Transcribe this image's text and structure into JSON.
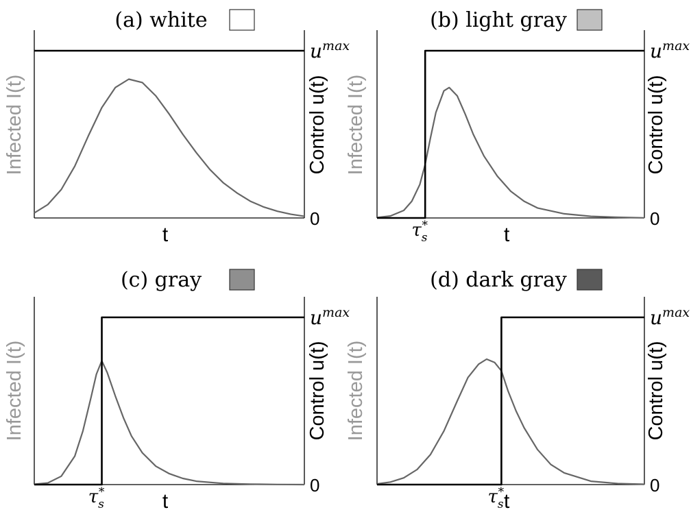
{
  "colors": {
    "infected_curve": "#666666",
    "control_curve": "#000000",
    "axis": "#000000",
    "left_label": "#999999"
  },
  "chart_data": [
    {
      "type": "line",
      "title": "(a) white",
      "swatch_color": "#ffffff",
      "xlabel": "t",
      "ylabel_left": "Infected I(t)",
      "ylabel_right": "Control u(t)",
      "right_ticks": {
        "top": "u",
        "top_sup": "max",
        "bottom": "0"
      },
      "tau_label": null,
      "switch_time": null,
      "series": [
        {
          "name": "",
          "kind": "infected",
          "x": [
            0,
            0.05,
            0.1,
            0.15,
            0.2,
            0.25,
            0.3,
            0.35,
            0.4,
            0.45,
            0.5,
            0.55,
            0.6,
            0.65,
            0.7,
            0.75,
            0.8,
            0.85,
            0.9,
            0.95,
            1
          ],
          "y": [
            0.03,
            0.08,
            0.17,
            0.31,
            0.49,
            0.66,
            0.78,
            0.83,
            0.81,
            0.73,
            0.62,
            0.5,
            0.39,
            0.29,
            0.21,
            0.15,
            0.1,
            0.065,
            0.04,
            0.022,
            0.01
          ]
        },
        {
          "name": "",
          "kind": "control",
          "x": [
            0,
            1
          ],
          "y": [
            1,
            1
          ]
        }
      ]
    },
    {
      "type": "line",
      "title": "(b) light gray",
      "swatch_color": "#c0c0c0",
      "xlabel": "t",
      "ylabel_left": "Infected I(t)",
      "ylabel_right": "Control u(t)",
      "right_ticks": {
        "top": "u",
        "top_sup": "max",
        "bottom": "0"
      },
      "tau_label": "τ",
      "switch_time": 0.18,
      "series": [
        {
          "name": "",
          "kind": "infected",
          "x": [
            0,
            0.05,
            0.1,
            0.13,
            0.16,
            0.18,
            0.2,
            0.22,
            0.25,
            0.27,
            0.3,
            0.33,
            0.36,
            0.4,
            0.45,
            0.5,
            0.55,
            0.6,
            0.7,
            0.8,
            0.9,
            1
          ],
          "y": [
            0.003,
            0.012,
            0.045,
            0.1,
            0.2,
            0.32,
            0.48,
            0.63,
            0.76,
            0.78,
            0.73,
            0.62,
            0.5,
            0.37,
            0.25,
            0.16,
            0.1,
            0.06,
            0.025,
            0.01,
            0.004,
            0.001
          ]
        },
        {
          "name": "",
          "kind": "control",
          "x": [
            0,
            0.18,
            0.18,
            1
          ],
          "y": [
            0,
            0,
            1,
            1
          ]
        }
      ]
    },
    {
      "type": "line",
      "title": "(c) gray",
      "swatch_color": "#8f8f8f",
      "xlabel": "t",
      "ylabel_left": "Infected I(t)",
      "ylabel_right": "Control u(t)",
      "right_ticks": {
        "top": "u",
        "top_sup": "max",
        "bottom": "0"
      },
      "tau_label": "τ",
      "switch_time": 0.25,
      "series": [
        {
          "name": "",
          "kind": "infected",
          "x": [
            0,
            0.05,
            0.1,
            0.15,
            0.18,
            0.21,
            0.23,
            0.25,
            0.27,
            0.3,
            0.33,
            0.36,
            0.4,
            0.45,
            0.5,
            0.55,
            0.6,
            0.7,
            0.8,
            0.9,
            1
          ],
          "y": [
            0.002,
            0.01,
            0.05,
            0.17,
            0.32,
            0.52,
            0.66,
            0.74,
            0.67,
            0.53,
            0.4,
            0.29,
            0.19,
            0.11,
            0.065,
            0.037,
            0.02,
            0.007,
            0.003,
            0.001,
            0
          ]
        },
        {
          "name": "",
          "kind": "control",
          "x": [
            0,
            0.25,
            0.25,
            1
          ],
          "y": [
            0,
            0,
            1,
            1
          ]
        }
      ]
    },
    {
      "type": "line",
      "title": "(d) dark gray",
      "swatch_color": "#5a5a5a",
      "xlabel": "t",
      "ylabel_left": "Infected I(t)",
      "ylabel_right": "Control u(t)",
      "right_ticks": {
        "top": "u",
        "top_sup": "max",
        "bottom": "0"
      },
      "tau_label": "τ",
      "switch_time": 0.465,
      "series": [
        {
          "name": "",
          "kind": "infected",
          "x": [
            0,
            0.05,
            0.1,
            0.15,
            0.2,
            0.25,
            0.3,
            0.34,
            0.38,
            0.41,
            0.44,
            0.465,
            0.49,
            0.52,
            0.55,
            0.6,
            0.65,
            0.7,
            0.8,
            0.9,
            1
          ],
          "y": [
            0.004,
            0.015,
            0.04,
            0.09,
            0.18,
            0.32,
            0.5,
            0.64,
            0.72,
            0.75,
            0.73,
            0.68,
            0.56,
            0.44,
            0.34,
            0.21,
            0.12,
            0.07,
            0.02,
            0.006,
            0.002
          ]
        },
        {
          "name": "",
          "kind": "control",
          "x": [
            0,
            0.465,
            0.465,
            1
          ],
          "y": [
            0,
            0,
            1,
            1
          ]
        }
      ]
    }
  ]
}
